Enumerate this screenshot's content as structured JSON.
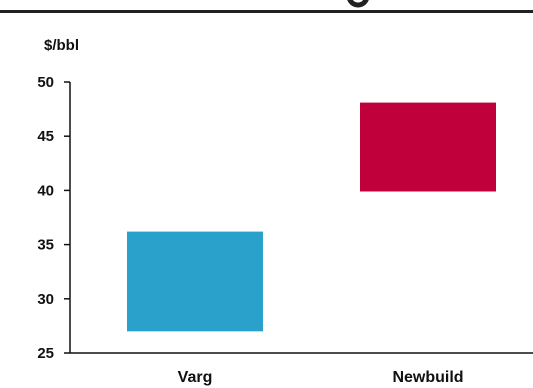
{
  "chart_data": {
    "type": "bar",
    "subtype": "floating-range",
    "ylabel": "$/bbl",
    "ylim": [
      25,
      50
    ],
    "yticks": [
      "50",
      "45",
      "40",
      "35",
      "30",
      "25"
    ],
    "ytick_values": [
      50,
      45,
      40,
      35,
      30,
      25
    ],
    "categories": [
      "Varg",
      "Newbuild"
    ],
    "ranges": [
      {
        "category": "Varg",
        "low": 27.0,
        "high": 36.2,
        "color": "#2aa1cb"
      },
      {
        "category": "Newbuild",
        "low": 39.9,
        "high": 48.1,
        "color": "#c0003a"
      }
    ],
    "grid": false
  },
  "colors": {
    "axis": "#111111",
    "top_rule": "#222222"
  }
}
